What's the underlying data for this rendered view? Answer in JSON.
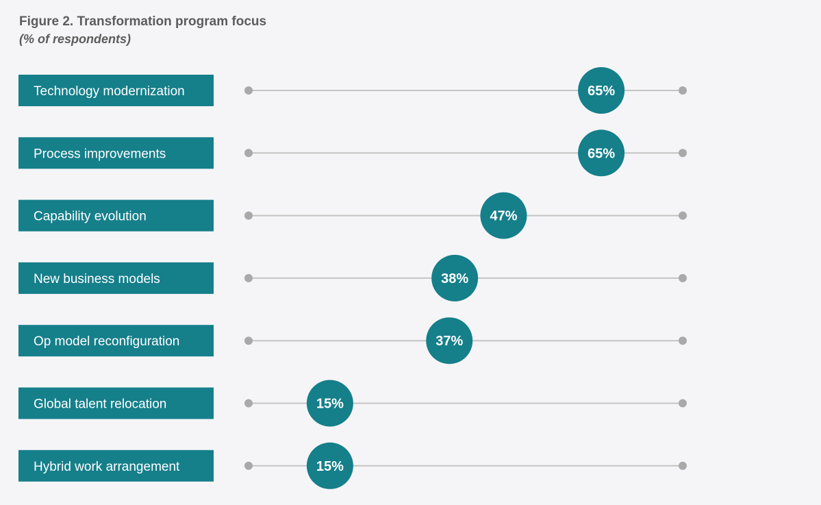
{
  "title": "Figure 2. Transformation program focus",
  "subtitle": "(% of respondents)",
  "colors": {
    "accent": "#157f8a",
    "track": "#c4c4c4",
    "endpoint": "#a9a9a9",
    "text_on_accent": "#ffffff",
    "heading": "#5c5c5c",
    "background": "#f5f5f7"
  },
  "chart_data": {
    "type": "dot",
    "title": "Figure 2. Transformation program focus",
    "subtitle": "(% of respondents)",
    "categories": [
      "Technology modernization",
      "Process improvements",
      "Capability evolution",
      "New business models",
      "Op model reconfiguration",
      "Global talent relocation",
      "Hybrid work arrangement"
    ],
    "values": [
      65,
      65,
      47,
      38,
      37,
      15,
      15
    ],
    "value_labels": [
      "65%",
      "65%",
      "47%",
      "38%",
      "37%",
      "15%",
      "15%"
    ],
    "xlim": [
      0,
      80
    ],
    "unit": "%",
    "grid": false,
    "legend": "none"
  }
}
